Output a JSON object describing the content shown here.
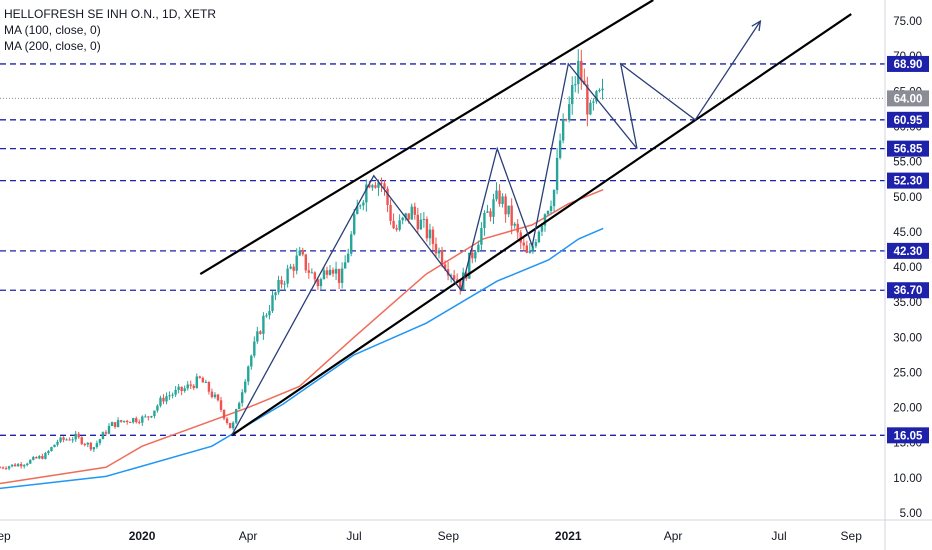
{
  "legend": {
    "symbol": "HELLOFRESH SE INH O.N., 1D, XETR",
    "ma100": "MA (100, close, 0)",
    "ma200": "MA (200, close, 0)"
  },
  "colors": {
    "up": "#26a69a",
    "down": "#ef5350",
    "ma100": "#ef6c5a",
    "ma200": "#2196f3",
    "level_line": "#1e22aa",
    "level_badge": "#1e22aa",
    "last_badge": "#8a8d96",
    "zigzag": "#2a3f78",
    "channel": "#000000"
  },
  "chart_data": {
    "type": "candlestick",
    "title": "HELLOFRESH SE INH O.N., 1D, XETR",
    "ylim": [
      4,
      78
    ],
    "xlim": [
      "2019-09-01",
      "2021-09-30"
    ],
    "y_ticks": [
      "5.00",
      "10.00",
      "15.00",
      "20.00",
      "25.00",
      "30.00",
      "35.00",
      "40.00",
      "45.00",
      "50.00",
      "55.00",
      "60.00",
      "65.00",
      "70.00",
      "75.00"
    ],
    "x_ticks": [
      {
        "date": "2019-09-01",
        "label": "Sep"
      },
      {
        "date": "2020-01-01",
        "label": "2020"
      },
      {
        "date": "2020-04-01",
        "label": "Apr"
      },
      {
        "date": "2020-07-01",
        "label": "Jul"
      },
      {
        "date": "2020-09-20",
        "label": "Sep"
      },
      {
        "date": "2021-01-01",
        "label": "2021"
      },
      {
        "date": "2021-04-01",
        "label": "Apr"
      },
      {
        "date": "2021-07-01",
        "label": "Jul"
      },
      {
        "date": "2021-09-01",
        "label": "Sep"
      }
    ],
    "last_price": "64.00",
    "horizontal_levels": [
      "68.90",
      "60.95",
      "56.85",
      "52.30",
      "42.30",
      "36.70",
      "16.05"
    ],
    "price_path": [
      [
        "2019-09-01",
        11.5
      ],
      [
        "2019-09-20",
        12.0
      ],
      [
        "2019-10-10",
        13.2
      ],
      [
        "2019-10-20",
        15.2
      ],
      [
        "2019-11-05",
        15.8
      ],
      [
        "2019-11-20",
        14.3
      ],
      [
        "2019-12-05",
        17.5
      ],
      [
        "2019-12-20",
        18.3
      ],
      [
        "2020-01-05",
        18.5
      ],
      [
        "2020-01-20",
        21.5
      ],
      [
        "2020-02-05",
        22.5
      ],
      [
        "2020-02-20",
        24.0
      ],
      [
        "2020-03-05",
        21.0
      ],
      [
        "2020-03-18",
        16.8
      ],
      [
        "2020-04-01",
        26.0
      ],
      [
        "2020-04-15",
        33.0
      ],
      [
        "2020-04-30",
        38.0
      ],
      [
        "2020-05-15",
        41.5
      ],
      [
        "2020-06-01",
        37.5
      ],
      [
        "2020-06-10",
        41.0
      ],
      [
        "2020-06-20",
        38.0
      ],
      [
        "2020-07-05",
        49.0
      ],
      [
        "2020-07-15",
        53.0
      ],
      [
        "2020-07-25",
        52.0
      ],
      [
        "2020-08-05",
        45.0
      ],
      [
        "2020-08-20",
        48.0
      ],
      [
        "2020-09-05",
        44.0
      ],
      [
        "2020-09-20",
        40.0
      ],
      [
        "2020-10-01",
        37.5
      ],
      [
        "2020-10-15",
        44.0
      ],
      [
        "2020-10-25",
        48.0
      ],
      [
        "2020-11-03",
        50.0
      ],
      [
        "2020-11-12",
        47.0
      ],
      [
        "2020-11-22",
        43.0
      ],
      [
        "2020-11-28",
        41.0
      ],
      [
        "2020-12-05",
        45.0
      ],
      [
        "2020-12-12",
        48.0
      ],
      [
        "2020-12-20",
        51.0
      ],
      [
        "2020-12-25",
        58.0
      ],
      [
        "2021-01-01",
        62.0
      ],
      [
        "2021-01-06",
        66.0
      ],
      [
        "2021-01-10",
        68.5
      ],
      [
        "2021-01-15",
        65.0
      ],
      [
        "2021-01-20",
        61.5
      ],
      [
        "2021-01-27",
        64.0
      ],
      [
        "2021-02-01",
        64.0
      ]
    ],
    "series": [
      {
        "name": "MA (100, close, 0)",
        "color": "#ef6c5a",
        "points": [
          [
            "2019-09-01",
            9.2
          ],
          [
            "2019-12-01",
            11.5
          ],
          [
            "2020-01-01",
            14.5
          ],
          [
            "2020-04-01",
            20.0
          ],
          [
            "2020-05-15",
            23.0
          ],
          [
            "2020-07-01",
            30.0
          ],
          [
            "2020-09-01",
            39.0
          ],
          [
            "2020-10-20",
            44.0
          ],
          [
            "2020-12-01",
            46.0
          ],
          [
            "2021-01-01",
            49.0
          ],
          [
            "2021-01-31",
            51.0
          ]
        ]
      },
      {
        "name": "MA (200, close, 0)",
        "color": "#2196f3",
        "points": [
          [
            "2019-09-01",
            8.5
          ],
          [
            "2019-12-01",
            10.2
          ],
          [
            "2020-03-01",
            14.5
          ],
          [
            "2020-05-01",
            20.5
          ],
          [
            "2020-07-01",
            27.5
          ],
          [
            "2020-09-01",
            32.0
          ],
          [
            "2020-11-01",
            38.0
          ],
          [
            "2020-12-15",
            41.0
          ],
          [
            "2021-01-10",
            44.0
          ],
          [
            "2021-01-31",
            45.5
          ]
        ]
      }
    ],
    "channel_lines": [
      [
        [
          "2020-02-20",
          39.0
        ],
        [
          "2021-03-15",
          78.0
        ]
      ],
      [
        [
          "2020-03-18",
          16.05
        ],
        [
          "2021-09-01",
          76.0
        ]
      ]
    ],
    "zigzag": [
      [
        "2020-03-18",
        16.05
      ],
      [
        "2020-07-18",
        53.0
      ],
      [
        "2020-10-01",
        36.7
      ],
      [
        "2020-11-01",
        56.85
      ],
      [
        "2020-12-01",
        43.0
      ],
      [
        "2021-01-01",
        68.9
      ],
      [
        "2021-03-01",
        56.85
      ],
      [
        "2021-02-15",
        68.9
      ],
      [
        "2021-04-20",
        60.95
      ],
      [
        "2021-06-15",
        75.0
      ]
    ]
  }
}
